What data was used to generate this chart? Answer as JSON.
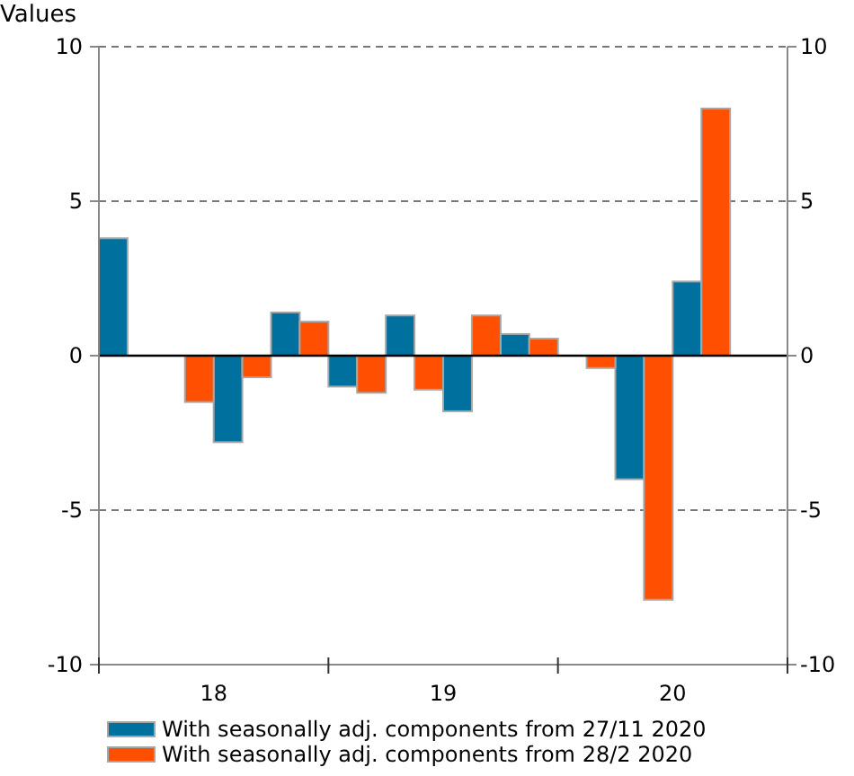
{
  "chart_data": {
    "type": "bar",
    "ylabel": "Values",
    "x": [
      17.625,
      17.875,
      18.125,
      18.375,
      18.625,
      18.875,
      19.125,
      19.375,
      19.625,
      19.875,
      20.125
    ],
    "series": [
      {
        "name": "With seasonally adj. components from 27/11 2020",
        "color": "#00709e",
        "values": [
          3.8,
          null,
          -2.8,
          1.4,
          -1.0,
          1.3,
          -1.8,
          0.7,
          null,
          -4.0,
          2.4
        ]
      },
      {
        "name": "With seasonally adj. components from 28/2 2020",
        "color": "#ff4f00",
        "values": [
          null,
          -1.5,
          -0.7,
          1.1,
          -1.2,
          -1.1,
          1.3,
          0.55,
          -0.4,
          -7.9,
          8.0
        ]
      }
    ],
    "xlim": [
      17.5,
      20.5
    ],
    "xticks": [
      {
        "value": 17.5,
        "label": null
      },
      18,
      {
        "value": 18.5,
        "label": null
      },
      19,
      {
        "value": 19.5,
        "label": null
      },
      20,
      {
        "value": 20.5,
        "label": null
      }
    ],
    "ylim": [
      -10,
      10
    ],
    "yticks": [
      -10,
      -5,
      0,
      5,
      10
    ],
    "y2lim": [
      -10,
      10
    ],
    "y2ticks": [
      -10,
      -5,
      0,
      5,
      10
    ],
    "grid": "y",
    "legend": "bottom"
  }
}
